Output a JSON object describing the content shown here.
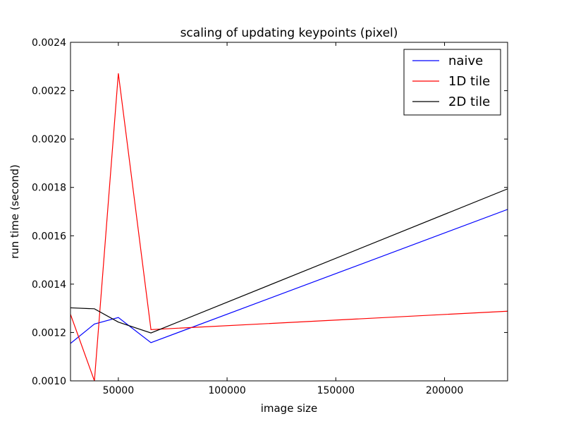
{
  "chart_data": {
    "type": "line",
    "title": "scaling of updating keypoints (pixel)",
    "xlabel": "image size",
    "ylabel": "run time (second)",
    "xlim": [
      28000,
      229000
    ],
    "ylim": [
      0.001,
      0.0024
    ],
    "x_ticks": [
      50000,
      100000,
      150000,
      200000
    ],
    "x_tick_labels": [
      "50000",
      "100000",
      "150000",
      "200000"
    ],
    "y_ticks": [
      0.001,
      0.0012,
      0.0014,
      0.0016,
      0.0018,
      0.002,
      0.0022,
      0.0024
    ],
    "y_tick_labels": [
      "0.0010",
      "0.0012",
      "0.0014",
      "0.0016",
      "0.0018",
      "0.0020",
      "0.0022",
      "0.0024"
    ],
    "grid": false,
    "legend_position": "top-right",
    "x": [
      28000,
      39000,
      50000,
      65000,
      229000
    ],
    "series": [
      {
        "name": "naive",
        "color": "#0000ff",
        "values": [
          0.001155,
          0.001235,
          0.001262,
          0.001158,
          0.001709
        ]
      },
      {
        "name": "1D tile",
        "color": "#ff0000",
        "values": [
          0.001275,
          0.001,
          0.002272,
          0.001212,
          0.001288
        ]
      },
      {
        "name": "2D tile",
        "color": "#000000",
        "values": [
          0.001302,
          0.001298,
          0.001243,
          0.001198,
          0.001794
        ]
      }
    ]
  }
}
